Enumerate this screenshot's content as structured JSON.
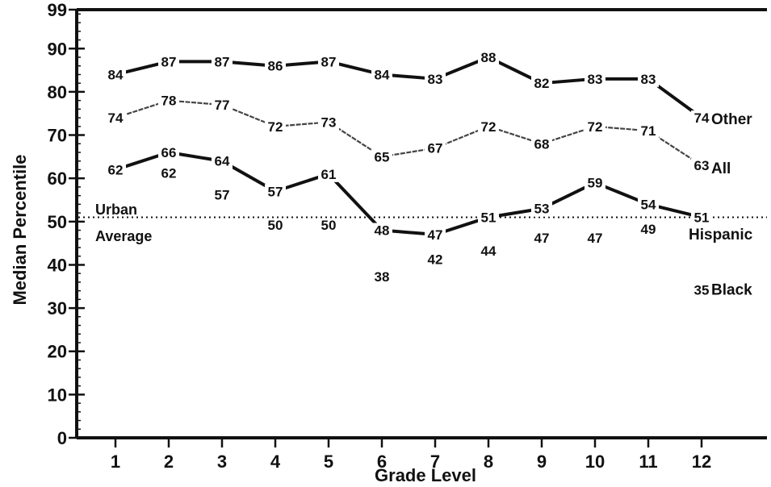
{
  "chart_data": {
    "type": "line",
    "xlabel": "Grade Level",
    "ylabel": "Median Percentile",
    "ylim": [
      0,
      99
    ],
    "y_ticks": [
      "0",
      "10",
      "20",
      "30",
      "40",
      "50",
      "60",
      "70",
      "80",
      "90",
      "99"
    ],
    "categories": [
      "1",
      "2",
      "3",
      "4",
      "5",
      "6",
      "7",
      "8",
      "9",
      "10",
      "11",
      "12"
    ],
    "grid": false,
    "legend": "series names printed at right end of lines",
    "reference_line": {
      "value": 51,
      "label_line1": "Urban",
      "label_line2": "Average",
      "style": "dotted"
    },
    "series": [
      {
        "name": "Other",
        "style": "thick",
        "color": "#111111",
        "values": [
          84,
          87,
          87,
          86,
          87,
          84,
          83,
          88,
          82,
          83,
          83,
          74
        ],
        "value_labels": [
          "84",
          "87",
          "87",
          "86",
          "87",
          "84",
          "83",
          "88",
          "82",
          "83",
          "83",
          "74"
        ]
      },
      {
        "name": "All",
        "style": "thin",
        "color": "#444444",
        "values": [
          74,
          78,
          77,
          72,
          73,
          65,
          67,
          72,
          68,
          72,
          71,
          63
        ],
        "value_labels": [
          "74",
          "78",
          "77",
          "72",
          "73",
          "65",
          "67",
          "72",
          "68",
          "72",
          "71",
          "63"
        ]
      },
      {
        "name": "Hispanic",
        "style": "thick",
        "color": "#111111",
        "values": [
          62,
          66,
          64,
          57,
          61,
          48,
          47,
          51,
          53,
          59,
          54,
          51
        ],
        "value_labels": [
          "62",
          "66",
          "64",
          "57",
          "61",
          "48",
          "47",
          "51",
          "53",
          "59",
          "54",
          "51"
        ]
      },
      {
        "name": "Black",
        "style": "labels-only",
        "color": "#111111",
        "values": [
          null,
          62,
          57,
          50,
          50,
          38,
          42,
          44,
          47,
          47,
          49,
          35
        ],
        "value_labels": [
          "",
          "62",
          "57",
          "50",
          "50",
          "38",
          "42",
          "44",
          "47",
          "47",
          "49",
          "35"
        ]
      }
    ]
  }
}
